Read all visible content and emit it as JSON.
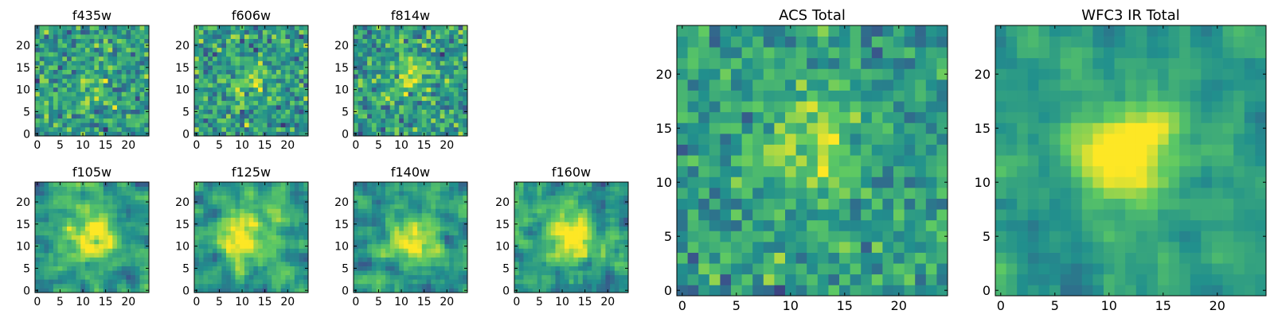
{
  "figure": {
    "background": "#ffffff",
    "axis_color": "#000000"
  },
  "colormap": [
    "#440154",
    "#3b528b",
    "#21908d",
    "#5dc963",
    "#fde725"
  ],
  "chart_data": [
    {
      "type": "heatmap",
      "id": "f435w",
      "title": "f435w",
      "size": 25,
      "xticks": [
        0,
        5,
        10,
        15,
        20
      ],
      "yticks": [
        0,
        5,
        10,
        15,
        20
      ],
      "blob": {
        "cx": 12,
        "cy": 12,
        "sigma": 3,
        "amp": 0.15
      },
      "noise": 0.45,
      "smooth": 0,
      "seed": 11
    },
    {
      "type": "heatmap",
      "id": "f606w",
      "title": "f606w",
      "size": 25,
      "xticks": [
        0,
        5,
        10,
        15,
        20
      ],
      "yticks": [
        0,
        5,
        10,
        15,
        20
      ],
      "blob": {
        "cx": 12,
        "cy": 12,
        "sigma": 3,
        "amp": 0.2
      },
      "noise": 0.45,
      "smooth": 0,
      "seed": 23
    },
    {
      "type": "heatmap",
      "id": "f814w",
      "title": "f814w",
      "size": 25,
      "xticks": [
        0,
        5,
        10,
        15,
        20
      ],
      "yticks": [
        0,
        5,
        10,
        15,
        20
      ],
      "blob": {
        "cx": 12,
        "cy": 14,
        "sigma": 3,
        "amp": 0.3
      },
      "noise": 0.45,
      "smooth": 0,
      "seed": 37
    },
    {
      "type": "heatmap",
      "id": "f105w",
      "title": "f105w",
      "size": 25,
      "xticks": [
        0,
        5,
        10,
        15,
        20
      ],
      "yticks": [
        0,
        5,
        10,
        15,
        20
      ],
      "blob": {
        "cx": 12,
        "cy": 12,
        "sigma": 3.5,
        "amp": 0.5
      },
      "noise": 0.45,
      "smooth": 1,
      "seed": 41
    },
    {
      "type": "heatmap",
      "id": "f125w",
      "title": "f125w",
      "size": 25,
      "xticks": [
        0,
        5,
        10,
        15,
        20
      ],
      "yticks": [
        0,
        5,
        10,
        15,
        20
      ],
      "blob": {
        "cx": 10,
        "cy": 12,
        "sigma": 4,
        "amp": 0.5
      },
      "noise": 0.45,
      "smooth": 1,
      "seed": 53
    },
    {
      "type": "heatmap",
      "id": "f140w",
      "title": "f140w",
      "size": 25,
      "xticks": [
        0,
        5,
        10,
        15,
        20
      ],
      "yticks": [
        0,
        5,
        10,
        15,
        20
      ],
      "blob": {
        "cx": 12,
        "cy": 12,
        "sigma": 3.5,
        "amp": 0.5
      },
      "noise": 0.45,
      "smooth": 1,
      "seed": 67
    },
    {
      "type": "heatmap",
      "id": "f160w",
      "title": "f160w",
      "size": 25,
      "xticks": [
        0,
        5,
        10,
        15,
        20
      ],
      "yticks": [
        0,
        5,
        10,
        15,
        20
      ],
      "blob": {
        "cx": 12,
        "cy": 12,
        "sigma": 3.5,
        "amp": 0.5
      },
      "noise": 0.5,
      "smooth": 1,
      "seed": 79
    },
    {
      "type": "heatmap",
      "id": "acs-total",
      "title": "ACS Total",
      "size": 25,
      "xticks": [
        0,
        5,
        10,
        15,
        20
      ],
      "yticks": [
        0,
        5,
        10,
        15,
        20
      ],
      "blob": {
        "cx": 12,
        "cy": 13,
        "sigma": 3,
        "amp": 0.3
      },
      "noise": 0.35,
      "smooth": 0,
      "seed": 97
    },
    {
      "type": "heatmap",
      "id": "wfc3-ir-total",
      "title": "WFC3 IR Total",
      "size": 25,
      "xticks": [
        0,
        5,
        10,
        15,
        20
      ],
      "yticks": [
        0,
        5,
        10,
        15,
        20
      ],
      "blob": {
        "cx": 12,
        "cy": 13,
        "sigma": 3,
        "amp": 0.65
      },
      "noise": 0.3,
      "smooth": 1,
      "seed": 113
    }
  ]
}
